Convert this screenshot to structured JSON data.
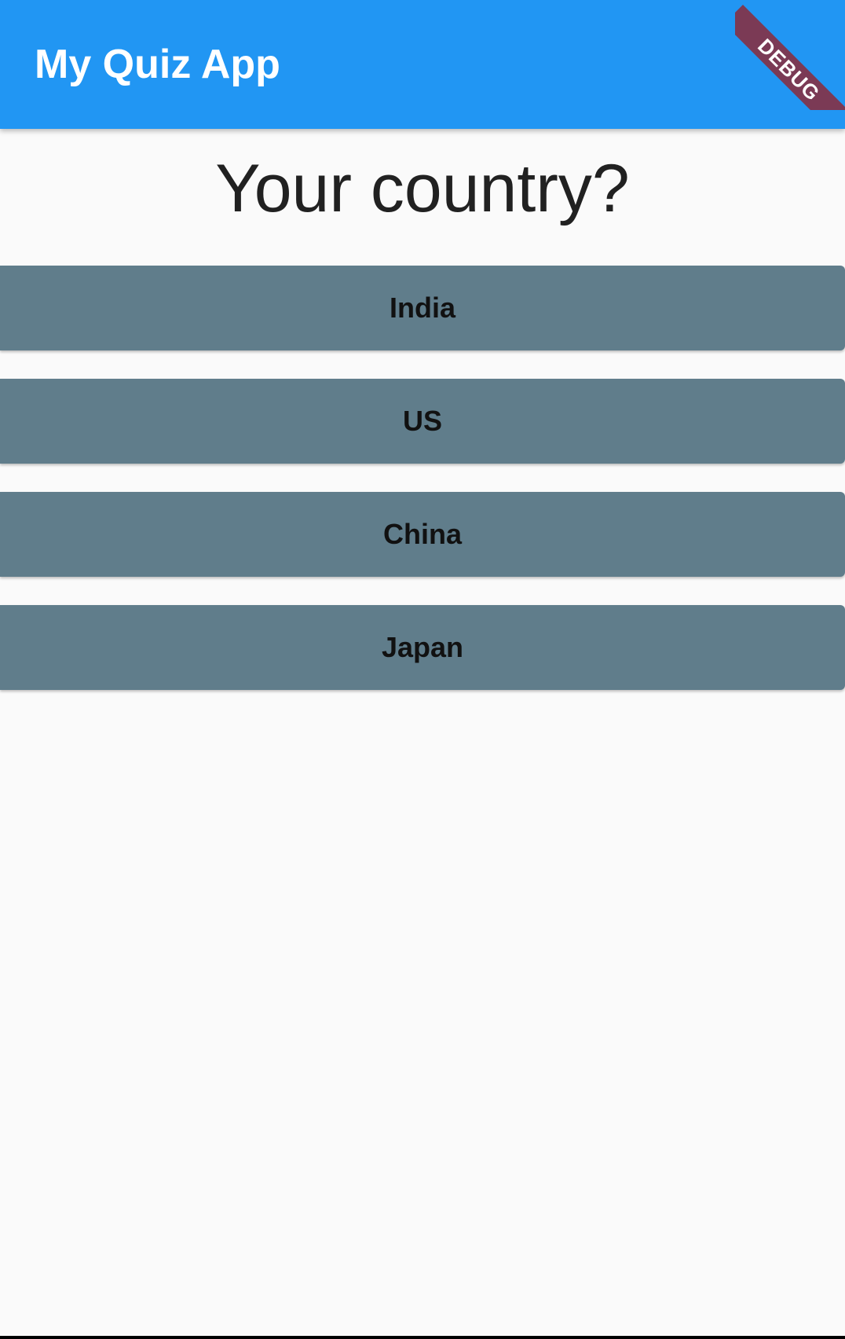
{
  "app_bar": {
    "title": "My Quiz App",
    "color": "#2196f3",
    "debug_banner": "DEBUG"
  },
  "quiz": {
    "question": "Your country?",
    "answers": [
      {
        "label": "India"
      },
      {
        "label": "US"
      },
      {
        "label": "China"
      },
      {
        "label": "Japan"
      }
    ],
    "button_color": "#607d8b"
  }
}
